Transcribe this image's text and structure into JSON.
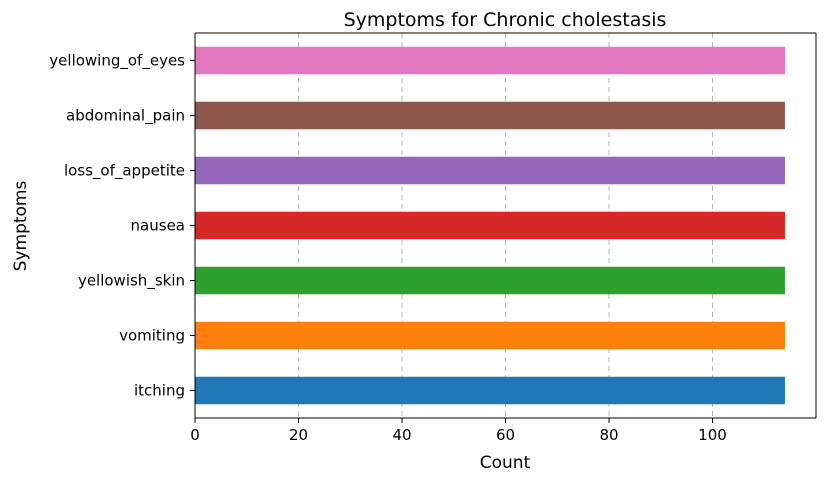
{
  "chart_data": {
    "type": "bar",
    "orientation": "horizontal",
    "title": "Symptoms for Chronic cholestasis",
    "xlabel": "Count",
    "ylabel": "Symptoms",
    "categories": [
      "itching",
      "vomiting",
      "yellowish_skin",
      "nausea",
      "loss_of_appetite",
      "abdominal_pain",
      "yellowing_of_eyes"
    ],
    "values": [
      114,
      114,
      114,
      114,
      114,
      114,
      114
    ],
    "colors": [
      "#1f77b4",
      "#ff7f0e",
      "#2ca02c",
      "#d62728",
      "#9467bd",
      "#8c564b",
      "#e377c2"
    ],
    "xlim": [
      0,
      120
    ],
    "xticks": [
      0,
      20,
      40,
      60,
      80,
      100
    ],
    "grid": "x-dashed",
    "legend": "none"
  }
}
